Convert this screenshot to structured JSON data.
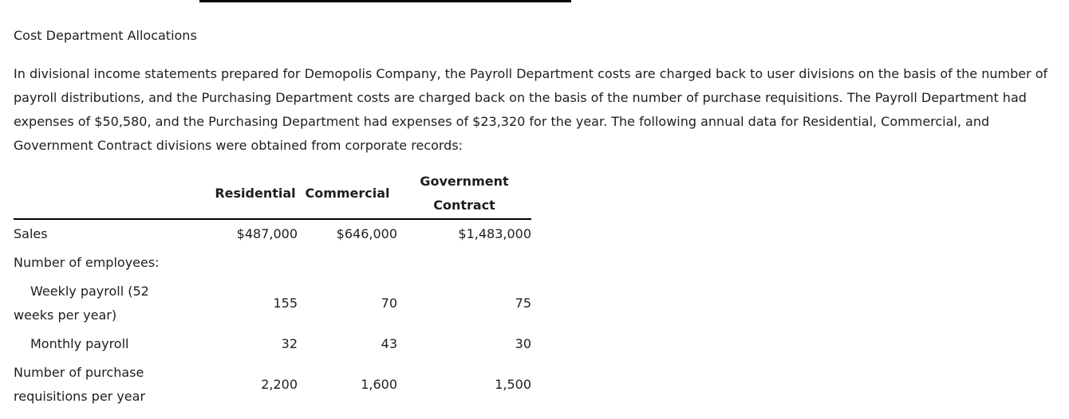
{
  "page": {
    "title": "Cost Department Allocations",
    "intro": "In divisional income statements prepared for Demopolis Company, the Payroll Department costs are charged back to user divisions on the basis of the number of payroll distributions, and the Purchasing Department costs are charged back on the basis of the number of purchase requisitions. The Payroll Department had expenses of $50,580, and the Purchasing Department had expenses of $23,320 for the year. The following annual data for Residential, Commercial, and Government Contract divisions were obtained from corporate records:"
  },
  "table": {
    "col_headers": [
      "Residential",
      "Commercial"
    ],
    "col3_header_lines": [
      "Government",
      "Contract"
    ],
    "rows": [
      {
        "label": "Sales",
        "values": [
          "$487,000",
          "$646,000",
          "$1,483,000"
        ]
      },
      {
        "label": "Number of employees:",
        "values": [
          "",
          "",
          ""
        ]
      },
      {
        "label_lines": [
          "Weekly payroll (52",
          "weeks per year)"
        ],
        "values": [
          "155",
          "70",
          "75"
        ]
      },
      {
        "label": "Monthly payroll",
        "values": [
          "32",
          "43",
          "30"
        ]
      },
      {
        "label_lines": [
          "Number of purchase",
          "requisitions per year"
        ],
        "values": [
          "2,200",
          "1,600",
          "1,500"
        ]
      }
    ]
  }
}
